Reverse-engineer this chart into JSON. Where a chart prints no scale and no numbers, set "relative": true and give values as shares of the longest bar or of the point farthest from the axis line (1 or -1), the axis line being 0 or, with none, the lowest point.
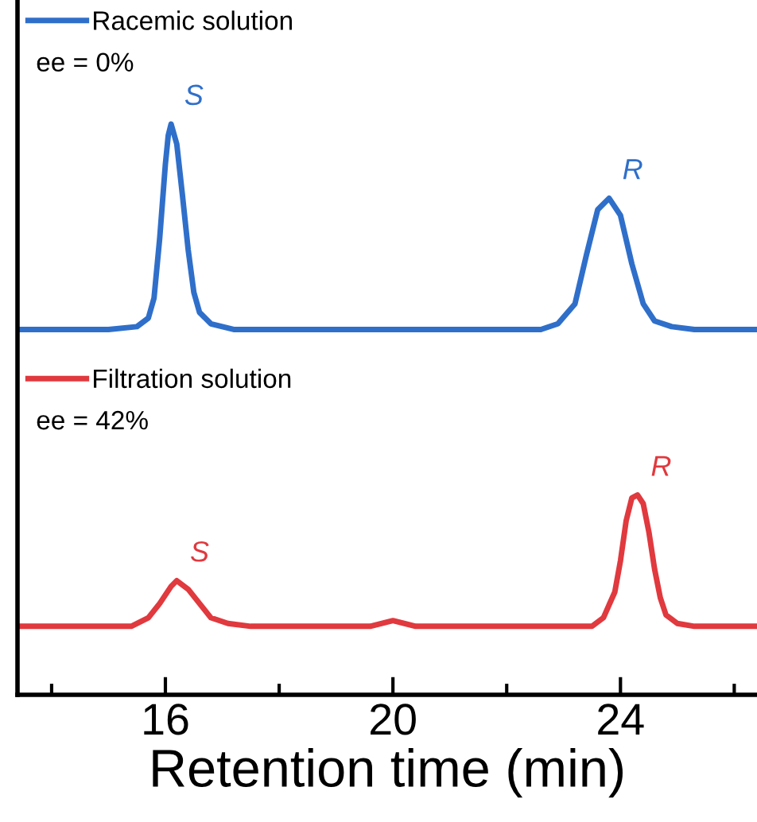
{
  "chart_data": {
    "type": "line",
    "relative": true,
    "xlim": [
      13.4,
      26.4
    ],
    "legend": "top left",
    "grid": false,
    "xticks": [
      {
        "value": 14,
        "label": null
      },
      16,
      {
        "value": 18,
        "label": null
      },
      20,
      {
        "value": 22,
        "label": null
      },
      24,
      {
        "value": 26,
        "label": null
      }
    ],
    "xlabel": "Retention time (min)",
    "series": [
      {
        "name": "Racemic solution",
        "color": "#2f6fca",
        "x": [
          13.4,
          15.0,
          15.5,
          15.7,
          15.8,
          15.9,
          16.0,
          16.05,
          16.1,
          16.2,
          16.3,
          16.4,
          16.5,
          16.6,
          16.8,
          17.2,
          20.0,
          22.6,
          22.9,
          23.2,
          23.4,
          23.6,
          23.8,
          24.0,
          24.2,
          24.4,
          24.6,
          24.9,
          25.3,
          26.4
        ],
        "values": [
          0.64,
          0.64,
          0.645,
          0.66,
          0.695,
          0.8,
          0.93,
          0.98,
          1,
          0.965,
          0.875,
          0.78,
          0.705,
          0.67,
          0.65,
          0.64,
          0.64,
          0.64,
          0.65,
          0.685,
          0.77,
          0.85,
          0.87,
          0.84,
          0.755,
          0.685,
          0.655,
          0.645,
          0.64,
          0.64
        ]
      },
      {
        "name": "Filtration solution",
        "color": "#e0393e",
        "x": [
          13.4,
          15.4,
          15.7,
          15.9,
          16.1,
          16.2,
          16.4,
          16.6,
          16.8,
          17.1,
          17.5,
          19.6,
          20.0,
          20.4,
          23.5,
          23.7,
          23.9,
          24.0,
          24.1,
          24.2,
          24.3,
          24.4,
          24.5,
          24.6,
          24.7,
          24.8,
          25.0,
          25.3,
          26.4
        ],
        "values": [
          0.12,
          0.12,
          0.135,
          0.16,
          0.19,
          0.2,
          0.185,
          0.16,
          0.135,
          0.125,
          0.12,
          0.12,
          0.13,
          0.12,
          0.12,
          0.135,
          0.18,
          0.235,
          0.305,
          0.345,
          0.35,
          0.335,
          0.285,
          0.22,
          0.17,
          0.14,
          0.125,
          0.12,
          0.12
        ]
      }
    ],
    "annotations": [
      "ee = 0%",
      "ee = 42%",
      {
        "text": "S",
        "x": 16.1,
        "y": 1
      },
      {
        "text": "R",
        "x": 23.8,
        "y": 0.87
      },
      {
        "text": "S",
        "x": 16.2,
        "y": 0.2
      },
      {
        "text": "R",
        "x": 24.3,
        "y": 0.35
      }
    ]
  }
}
